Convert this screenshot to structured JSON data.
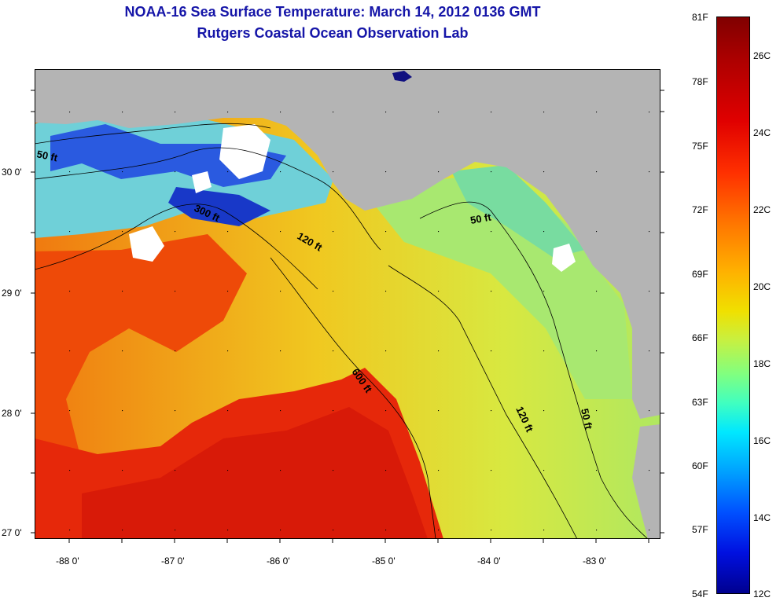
{
  "title_line1": "NOAA-16 Sea Surface Temperature:  March 14, 2012 0136 GMT",
  "title_line2": "Rutgers Coastal Ocean Observation Lab",
  "colors": {
    "title": "#1515a8",
    "land": "#b4b4b4",
    "cloud": "#ffffff",
    "contour": "#000000",
    "warm_water": "#e82a00",
    "cool_water": "#5fd8a0",
    "cold_water": "#1a3fd8"
  },
  "lat_labels": [
    "30 0'",
    "29 0'",
    "28 0'",
    "27 0'"
  ],
  "lon_labels": [
    "-88 0'",
    "-87 0'",
    "-86 0'",
    "-85 0'",
    "-84 0'",
    "-83 0'"
  ],
  "contour_labels": [
    "50 ft",
    "300 ft",
    "120 ft",
    "50 ft",
    "600 ft",
    "120 ft",
    "50 ft"
  ],
  "colorbar_f": [
    "81F",
    "78F",
    "75F",
    "72F",
    "69F",
    "66F",
    "63F",
    "60F",
    "57F",
    "54F"
  ],
  "colorbar_c": [
    "26C",
    "24C",
    "22C",
    "20C",
    "18C",
    "16C",
    "14C",
    "12C"
  ]
}
